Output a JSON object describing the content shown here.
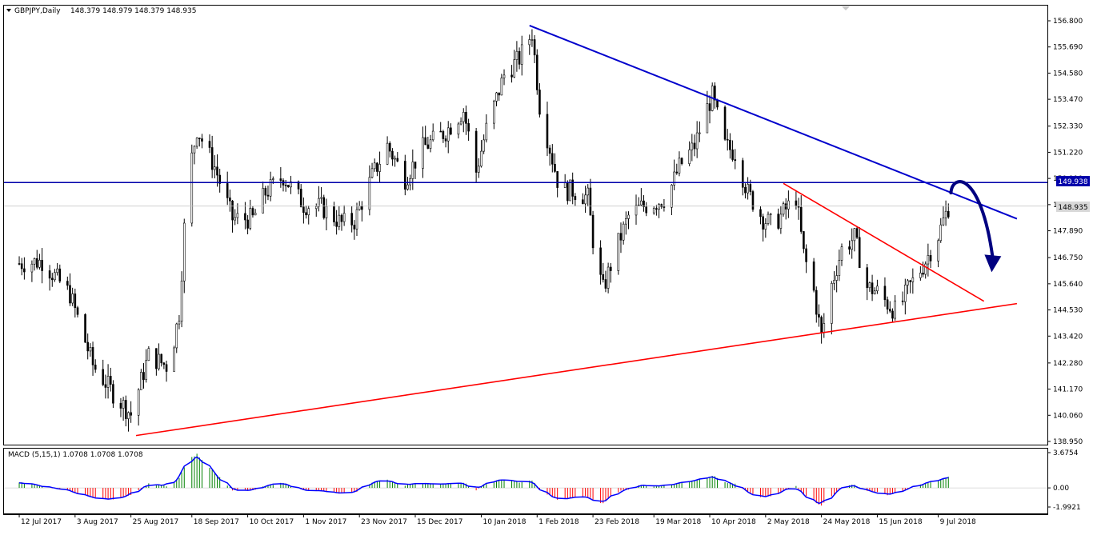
{
  "header": {
    "symbol": "GBPJPY,Daily",
    "ohlc": "148.379 148.979 148.379 148.935"
  },
  "macd_panel": {
    "label": "MACD (5,15,1) 1.0708 1.0708 1.0708"
  },
  "colors": {
    "background": "#ffffff",
    "candle": "#000000",
    "blue_trendline": "#0000cc",
    "red_trendline": "#ff0000",
    "horizontal_line": "#0000aa",
    "arrow": "#000080",
    "macd_positive": "#008000",
    "macd_negative": "#ff0000",
    "signal_line": "#0000ff",
    "label_bg_blue": "#0000aa",
    "label_bg_grey": "#d8d8d8"
  },
  "chart_data": [
    {
      "type": "candlestick",
      "price_axis": {
        "ticks": [
          "156.800",
          "155.690",
          "154.580",
          "153.470",
          "152.330",
          "151.220",
          "150.110",
          "149.000",
          "147.890",
          "146.750",
          "145.640",
          "144.530",
          "143.420",
          "142.280",
          "141.170",
          "140.060",
          "138.950"
        ],
        "range": [
          138.95,
          156.8
        ]
      },
      "date_axis": {
        "ticks": [
          "12 Jul 2017",
          "3 Aug 2017",
          "25 Aug 2017",
          "18 Sep 2017",
          "10 Oct 2017",
          "1 Nov 2017",
          "23 Nov 2017",
          "15 Dec 2017",
          "10 Jan 2018",
          "1 Feb 2018",
          "23 Feb 2018",
          "19 Mar 2018",
          "10 Apr 2018",
          "2 May 2018",
          "24 May 2018",
          "15 Jun 2018",
          "9 Jul 2018"
        ]
      },
      "price_labels": {
        "horizontal_level": "149.938",
        "current_price": "148.935"
      },
      "close_path": [
        [
          "12 Jul 2017",
          146.5
        ],
        [
          "21 Jul 2017",
          146.6
        ],
        [
          "1 Aug 2017",
          145.2
        ],
        [
          "10 Aug 2017",
          142.2
        ],
        [
          "18 Aug 2017",
          141.0
        ],
        [
          "25 Aug 2017",
          140.1
        ],
        [
          "1 Sep 2017",
          142.6
        ],
        [
          "9 Sep 2017",
          142.1
        ],
        [
          "13 Sep 2017",
          144.4
        ],
        [
          "16 Sep 2017",
          149.8
        ],
        [
          "20 Sep 2017",
          152.2
        ],
        [
          "27 Sep 2017",
          150.6
        ],
        [
          "4 Oct 2017",
          148.4
        ],
        [
          "12 Oct 2017",
          148.4
        ],
        [
          "17 Oct 2017",
          149.5
        ],
        [
          "24 Oct 2017",
          150.2
        ],
        [
          "1 Nov 2017",
          149.0
        ],
        [
          "8 Nov 2017",
          148.9
        ],
        [
          "16 Nov 2017",
          148.2
        ],
        [
          "21 Nov 2017",
          148.3
        ],
        [
          "28 Nov 2017",
          150.2
        ],
        [
          "4 Dec 2017",
          151.5
        ],
        [
          "11 Dec 2017",
          150.1
        ],
        [
          "18 Dec 2017",
          151.4
        ],
        [
          "27 Dec 2017",
          152.1
        ],
        [
          "3 Jan 2018",
          153.0
        ],
        [
          "8 Jan 2018",
          150.4
        ],
        [
          "12 Jan 2018",
          152.2
        ],
        [
          "19 Jan 2018",
          154.5
        ],
        [
          "25 Jan 2018",
          155.2
        ],
        [
          "30 Jan 2018",
          156.3
        ],
        [
          "2 Feb 2018",
          153.2
        ],
        [
          "6 Feb 2018",
          151.4
        ],
        [
          "10 Feb 2018",
          149.6
        ],
        [
          "15 Feb 2018",
          149.6
        ],
        [
          "21 Feb 2018",
          149.3
        ],
        [
          "24 Feb 2018",
          146.6
        ],
        [
          "27 Feb 2018",
          145.4
        ],
        [
          "4 Mar 2018",
          147.1
        ],
        [
          "9 Mar 2018",
          148.5
        ],
        [
          "14 Mar 2018",
          148.9
        ],
        [
          "20 Mar 2018",
          149.1
        ],
        [
          "24 Mar 2018",
          149.3
        ],
        [
          "29 Mar 2018",
          150.6
        ],
        [
          "4 Apr 2018",
          151.5
        ],
        [
          "9 Apr 2018",
          153.1
        ],
        [
          "11 Apr 2018",
          153.6
        ],
        [
          "16 Apr 2018",
          151.5
        ],
        [
          "20 Apr 2018",
          151.2
        ],
        [
          "25 Apr 2018",
          149.5
        ],
        [
          "1 May 2018",
          148.4
        ],
        [
          "5 May 2018",
          148.1
        ],
        [
          "10 May 2018",
          148.8
        ],
        [
          "14 May 2018",
          149.3
        ],
        [
          "17 May 2018",
          146.9
        ],
        [
          "21 May 2018",
          145.3
        ],
        [
          "24 May 2018",
          143.4
        ],
        [
          "28 May 2018",
          145.6
        ],
        [
          "1 Jun 2018",
          147.1
        ],
        [
          "6 Jun 2018",
          147.6
        ],
        [
          "11 Jun 2018",
          145.5
        ],
        [
          "15 Jun 2018",
          145.3
        ],
        [
          "19 Jun 2018",
          144.8
        ],
        [
          "23 Jun 2018",
          144.4
        ],
        [
          "27 Jun 2018",
          145.4
        ],
        [
          "3 Jul 2018",
          146.4
        ],
        [
          "9 Jul 2018",
          147.7
        ],
        [
          "13 Jul 2018",
          148.9
        ]
      ],
      "annotations": {
        "blue_resistance": {
          "from": [
            "29 Jan 2018",
            156.6
          ],
          "to": [
            "9 Aug 2018",
            148.4
          ]
        },
        "red_support": {
          "from": [
            "27 Aug 2017",
            139.2
          ],
          "to": [
            "9 Aug 2018",
            144.8
          ]
        },
        "red_short_trendline": {
          "from": [
            "9 May 2018",
            149.9
          ],
          "to": [
            "27 Jul 2018",
            144.9
          ]
        },
        "horizontal_level": 149.938,
        "curved_arrow": {
          "from": [
            "14 Jul 2018",
            149.5
          ],
          "peak": [
            "20 Jul 2018",
            150.0
          ],
          "to": [
            "31 Jul 2018",
            146.2
          ]
        }
      }
    },
    {
      "type": "bar",
      "indicator": "MACD (5,15,1)",
      "y_axis": {
        "ticks": [
          "3.6754",
          "0.00",
          "-1.9921"
        ],
        "range": [
          -1.9921,
          3.6754
        ]
      },
      "histogram_path": [
        [
          "12 Jul 2017",
          0.6
        ],
        [
          "21 Jul 2017",
          0.2
        ],
        [
          "1 Aug 2017",
          -0.3
        ],
        [
          "10 Aug 2017",
          -1.0
        ],
        [
          "18 Aug 2017",
          -1.2
        ],
        [
          "25 Aug 2017",
          -0.8
        ],
        [
          "1 Sep 2017",
          0.4
        ],
        [
          "9 Sep 2017",
          0.2
        ],
        [
          "13 Sep 2017",
          1.0
        ],
        [
          "16 Sep 2017",
          2.8
        ],
        [
          "20 Sep 2017",
          3.5
        ],
        [
          "27 Sep 2017",
          1.6
        ],
        [
          "4 Oct 2017",
          -0.2
        ],
        [
          "12 Oct 2017",
          -0.3
        ],
        [
          "17 Oct 2017",
          0.2
        ],
        [
          "24 Oct 2017",
          0.5
        ],
        [
          "1 Nov 2017",
          -0.2
        ],
        [
          "8 Nov 2017",
          -0.3
        ],
        [
          "16 Nov 2017",
          -0.6
        ],
        [
          "21 Nov 2017",
          -0.5
        ],
        [
          "28 Nov 2017",
          0.6
        ],
        [
          "4 Dec 2017",
          0.8
        ],
        [
          "11 Dec 2017",
          0.3
        ],
        [
          "18 Dec 2017",
          0.5
        ],
        [
          "27 Dec 2017",
          0.4
        ],
        [
          "3 Jan 2018",
          0.6
        ],
        [
          "8 Jan 2018",
          -0.3
        ],
        [
          "12 Jan 2018",
          0.5
        ],
        [
          "19 Jan 2018",
          0.9
        ],
        [
          "25 Jan 2018",
          0.6
        ],
        [
          "30 Jan 2018",
          0.8
        ],
        [
          "2 Feb 2018",
          -0.2
        ],
        [
          "6 Feb 2018",
          -0.8
        ],
        [
          "10 Feb 2018",
          -1.3
        ],
        [
          "15 Feb 2018",
          -1.0
        ],
        [
          "21 Feb 2018",
          -0.9
        ],
        [
          "24 Feb 2018",
          -1.5
        ],
        [
          "27 Feb 2018",
          -1.6
        ],
        [
          "4 Mar 2018",
          -0.5
        ],
        [
          "9 Mar 2018",
          -0.1
        ],
        [
          "14 Mar 2018",
          0.3
        ],
        [
          "20 Mar 2018",
          0.2
        ],
        [
          "24 Mar 2018",
          0.3
        ],
        [
          "29 Mar 2018",
          0.5
        ],
        [
          "4 Apr 2018",
          0.8
        ],
        [
          "9 Apr 2018",
          1.1
        ],
        [
          "11 Apr 2018",
          1.3
        ],
        [
          "16 Apr 2018",
          0.6
        ],
        [
          "20 Apr 2018",
          0.4
        ],
        [
          "25 Apr 2018",
          -0.5
        ],
        [
          "1 May 2018",
          -1.0
        ],
        [
          "5 May 2018",
          -0.8
        ],
        [
          "10 May 2018",
          -0.2
        ],
        [
          "14 May 2018",
          0.2
        ],
        [
          "17 May 2018",
          -0.6
        ],
        [
          "21 May 2018",
          -1.4
        ],
        [
          "24 May 2018",
          -1.8
        ],
        [
          "28 May 2018",
          -0.9
        ],
        [
          "1 Jun 2018",
          0.1
        ],
        [
          "6 Jun 2018",
          0.3
        ],
        [
          "11 Jun 2018",
          -0.3
        ],
        [
          "15 Jun 2018",
          -0.5
        ],
        [
          "19 Jun 2018",
          -0.7
        ],
        [
          "23 Jun 2018",
          -0.6
        ],
        [
          "27 Jun 2018",
          -0.1
        ],
        [
          "3 Jul 2018",
          0.4
        ],
        [
          "9 Jul 2018",
          0.8
        ],
        [
          "13 Jul 2018",
          1.1
        ]
      ]
    }
  ]
}
